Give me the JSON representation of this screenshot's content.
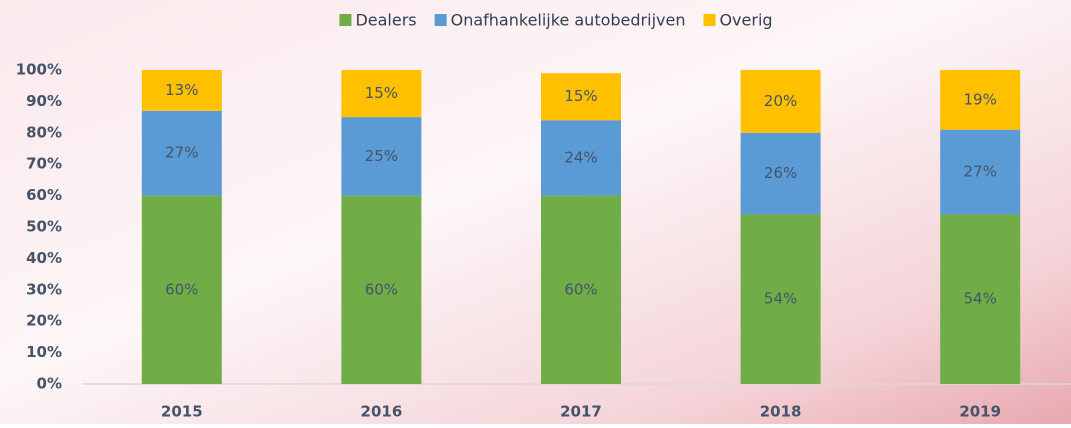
{
  "chart_data": {
    "type": "stacked-bar",
    "categories": [
      "2015",
      "2016",
      "2017",
      "2018",
      "2019"
    ],
    "series": [
      {
        "name": "Dealers",
        "color": "#70ad47",
        "values": [
          60,
          60,
          60,
          54,
          54
        ],
        "value_labels": [
          "60%",
          "60%",
          "60%",
          "54%",
          "54%"
        ]
      },
      {
        "name": "Onafhankelijke autobedrijven",
        "color": "#5b9bd5",
        "values": [
          27,
          25,
          24,
          26,
          27
        ],
        "value_labels": [
          "27%",
          "25%",
          "24%",
          "26%",
          "27%"
        ]
      },
      {
        "name": "Overig",
        "color": "#ffc000",
        "values": [
          13,
          15,
          15,
          20,
          19
        ],
        "value_labels": [
          "13%",
          "15%",
          "15%",
          "20%",
          "19%"
        ]
      }
    ],
    "ylim": [
      0,
      100
    ],
    "yticks": [
      {
        "value": 0,
        "label": "0%"
      },
      {
        "value": 10,
        "label": "10%"
      },
      {
        "value": 20,
        "label": "20%"
      },
      {
        "value": 30,
        "label": "30%"
      },
      {
        "value": 40,
        "label": "40%"
      },
      {
        "value": 50,
        "label": "50%"
      },
      {
        "value": 60,
        "label": "60%"
      },
      {
        "value": 70,
        "label": "70%"
      },
      {
        "value": 80,
        "label": "80%"
      },
      {
        "value": 90,
        "label": "90%"
      },
      {
        "value": 100,
        "label": "100%"
      }
    ],
    "legend": "top"
  }
}
